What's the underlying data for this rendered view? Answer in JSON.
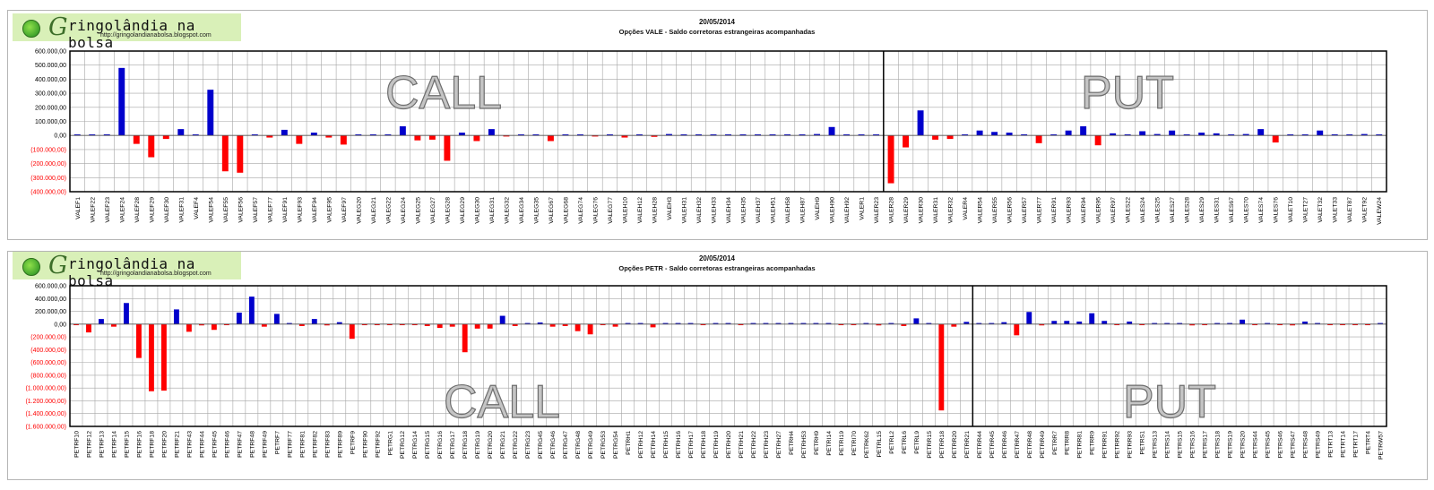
{
  "brand": {
    "logo_letter": "G",
    "logo_text": "ringolândia na bolsa",
    "url": "http://gringolandianabolsa.blogspot.com"
  },
  "colors": {
    "positive": "#0000cc",
    "negative": "#ff0000",
    "grid": "#a6a6a6",
    "axis": "#000000"
  },
  "chart_data": [
    {
      "type": "bar",
      "date": "20/05/2014",
      "title": "Opções VALE - Saldo corretoras estrangeiras acompanhadas",
      "ylim": [
        -400000,
        600000
      ],
      "ticks": [
        {
          "v": 600000,
          "label": "600.000,00"
        },
        {
          "v": 500000,
          "label": "500.000,00"
        },
        {
          "v": 400000,
          "label": "400.000,00"
        },
        {
          "v": 300000,
          "label": "300.000,00"
        },
        {
          "v": 200000,
          "label": "200.000,00"
        },
        {
          "v": 100000,
          "label": "100.000,00"
        },
        {
          "v": 0,
          "label": "0,00"
        },
        {
          "v": -100000,
          "label": "(100.000,00)"
        },
        {
          "v": -200000,
          "label": "(200.000,00)"
        },
        {
          "v": -300000,
          "label": "(300.000,00)"
        },
        {
          "v": -400000,
          "label": "(400.000,00)"
        }
      ],
      "grid": true,
      "annotations": [
        "CALL",
        "PUT"
      ],
      "split_after_index": 54,
      "categories": [
        "VALEF1",
        "VALEF22",
        "VALEF23",
        "VALEF24",
        "VALEF28",
        "VALEF29",
        "VALEF30",
        "VALEF31",
        "VALEF4",
        "VALEF54",
        "VALEF55",
        "VALEF56",
        "VALEF57",
        "VALEF77",
        "VALEF91",
        "VALEF93",
        "VALEF94",
        "VALEF95",
        "VALEF97",
        "VALEG20",
        "VALEG21",
        "VALEG22",
        "VALEG24",
        "VALEG25",
        "VALEG27",
        "VALEG28",
        "VALEG29",
        "VALEG30",
        "VALEG31",
        "VALEG32",
        "VALEG34",
        "VALEG35",
        "VALEG67",
        "VALEG68",
        "VALEG74",
        "VALEG76",
        "VALEG77",
        "VALEH10",
        "VALEH12",
        "VALEH28",
        "VALEH3",
        "VALEH31",
        "VALEH32",
        "VALEH33",
        "VALEH34",
        "VALEH35",
        "VALEH37",
        "VALEH51",
        "VALEH58",
        "VALEH87",
        "VALEH9",
        "VALEH90",
        "VALEH92",
        "VALER1",
        "VALER23",
        "VALER28",
        "VALER29",
        "VALER30",
        "VALER31",
        "VALER32",
        "VALER4",
        "VALER54",
        "VALER55",
        "VALER56",
        "VALER57",
        "VALER77",
        "VALER91",
        "VALER93",
        "VALER94",
        "VALER95",
        "VALER97",
        "VALES22",
        "VALES24",
        "VALES25",
        "VALES27",
        "VALES28",
        "VALES29",
        "VALES31",
        "VALES67",
        "VALES70",
        "VALES74",
        "VALES76",
        "VALET10",
        "VALET27",
        "VALET32",
        "VALET33",
        "VALET87",
        "VALET92",
        "VALEW24"
      ],
      "values": [
        5000,
        5000,
        8000,
        480000,
        -60000,
        -155000,
        -25000,
        45000,
        5000,
        325000,
        -255000,
        -265000,
        5000,
        -15000,
        40000,
        -60000,
        20000,
        -15000,
        -65000,
        0,
        0,
        0,
        65000,
        -35000,
        -30000,
        -180000,
        20000,
        -40000,
        45000,
        -5000,
        5000,
        5000,
        -40000,
        5000,
        5000,
        -5000,
        5000,
        -15000,
        5000,
        -10000,
        10000,
        5000,
        0,
        5000,
        5000,
        5000,
        5000,
        5000,
        0,
        0,
        10000,
        60000,
        5000,
        5000,
        5000,
        -340000,
        -85000,
        178000,
        -30000,
        -25000,
        5000,
        35000,
        25000,
        20000,
        8000,
        -55000,
        5000,
        35000,
        65000,
        -70000,
        15000,
        5000,
        30000,
        10000,
        35000,
        5000,
        20000,
        15000,
        0,
        10000,
        45000,
        -50000,
        5000,
        0,
        35000,
        8000,
        5000,
        10000,
        5000
      ]
    },
    {
      "type": "bar",
      "date": "20/05/2014",
      "title": "Opções PETR - Saldo corretoras estrangeiras acompanhadas",
      "ylim": [
        -1600000,
        600000
      ],
      "ticks": [
        {
          "v": 600000,
          "label": "600.000,00"
        },
        {
          "v": 400000,
          "label": "400.000,00"
        },
        {
          "v": 200000,
          "label": "200.000,00"
        },
        {
          "v": 0,
          "label": "0,00"
        },
        {
          "v": -200000,
          "label": "(200.000,00)"
        },
        {
          "v": -400000,
          "label": "(400.000,00)"
        },
        {
          "v": -600000,
          "label": "(600.000,00)"
        },
        {
          "v": -800000,
          "label": "(800.000,00)"
        },
        {
          "v": -1000000,
          "label": "(1.000.000,00)"
        },
        {
          "v": -1200000,
          "label": "(1.200.000,00)"
        },
        {
          "v": -1400000,
          "label": "(1.400.000,00)"
        },
        {
          "v": -1600000,
          "label": "(1.600.000,00)"
        }
      ],
      "grid": true,
      "annotations": [
        "CALL",
        "PUT"
      ],
      "split_after_index": 71,
      "categories": [
        "PETRF10",
        "PETRF12",
        "PETRF13",
        "PETRF14",
        "PETRF15",
        "PETRF16",
        "PETRF18",
        "PETRF20",
        "PETRF21",
        "PETRF43",
        "PETRF44",
        "PETRF45",
        "PETRF46",
        "PETRF47",
        "PETRF48",
        "PETRF49",
        "PETRF7",
        "PETRF77",
        "PETRF81",
        "PETRF82",
        "PETRF83",
        "PETRF89",
        "PETRF9",
        "PETRF90",
        "PETRF92",
        "PETRG1",
        "PETRG12",
        "PETRG14",
        "PETRG15",
        "PETRG16",
        "PETRG17",
        "PETRG18",
        "PETRG19",
        "PETRG20",
        "PETRG21",
        "PETRG22",
        "PETRG23",
        "PETRG45",
        "PETRG46",
        "PETRG47",
        "PETRG48",
        "PETRG49",
        "PETRG53",
        "PETRG54",
        "PETRH1",
        "PETRH12",
        "PETRH14",
        "PETRH15",
        "PETRH16",
        "PETRH17",
        "PETRH18",
        "PETRH19",
        "PETRH20",
        "PETRH21",
        "PETRH22",
        "PETRH23",
        "PETRH27",
        "PETRH4",
        "PETRH53",
        "PETRH9",
        "PETRI14",
        "PETRI19",
        "PETRI70",
        "PETRK62",
        "PETRL15",
        "PETRL2",
        "PETRL6",
        "PETRL9",
        "PETRR15",
        "PETRR18",
        "PETRR20",
        "PETRR21",
        "PETRR44",
        "PETRR45",
        "PETRR46",
        "PETRR47",
        "PETRR48",
        "PETRR49",
        "PETRR7",
        "PETRR8",
        "PETRR81",
        "PETRR9",
        "PETRR91",
        "PETRR92",
        "PETRR93",
        "PETRS1",
        "PETRS13",
        "PETRS14",
        "PETRS15",
        "PETRS16",
        "PETRS17",
        "PETRS18",
        "PETRS19",
        "PETRS20",
        "PETRS44",
        "PETRS45",
        "PETRS46",
        "PETRS47",
        "PETRS48",
        "PETRS49",
        "PETRT13",
        "PETRT14",
        "PETRT17",
        "PETRT4",
        "PETRW57"
      ],
      "values": [
        -10000,
        -130000,
        80000,
        -40000,
        330000,
        -530000,
        -1050000,
        -1040000,
        230000,
        -120000,
        -20000,
        -90000,
        -15000,
        180000,
        430000,
        -40000,
        160000,
        0,
        -30000,
        80000,
        -20000,
        30000,
        -230000,
        -15000,
        -15000,
        -10000,
        -15000,
        -15000,
        -30000,
        -60000,
        -40000,
        -440000,
        -70000,
        -70000,
        130000,
        -30000,
        0,
        25000,
        -40000,
        -30000,
        -110000,
        -160000,
        -15000,
        -40000,
        0,
        0,
        -50000,
        0,
        0,
        15000,
        -15000,
        0,
        0,
        -10000,
        0,
        10000,
        0,
        0,
        0,
        0,
        0,
        -15000,
        -15000,
        0,
        -20000,
        15000,
        -30000,
        90000,
        15000,
        -1350000,
        -40000,
        35000,
        0,
        0,
        30000,
        -175000,
        190000,
        -20000,
        50000,
        50000,
        40000,
        170000,
        50000,
        -15000,
        40000,
        -15000,
        0,
        0,
        0,
        -20000,
        -15000,
        15000,
        15000,
        70000,
        -10000,
        0,
        -15000,
        -20000,
        40000,
        0,
        -15000,
        -10000,
        -10000,
        -10000,
        0
      ]
    }
  ]
}
